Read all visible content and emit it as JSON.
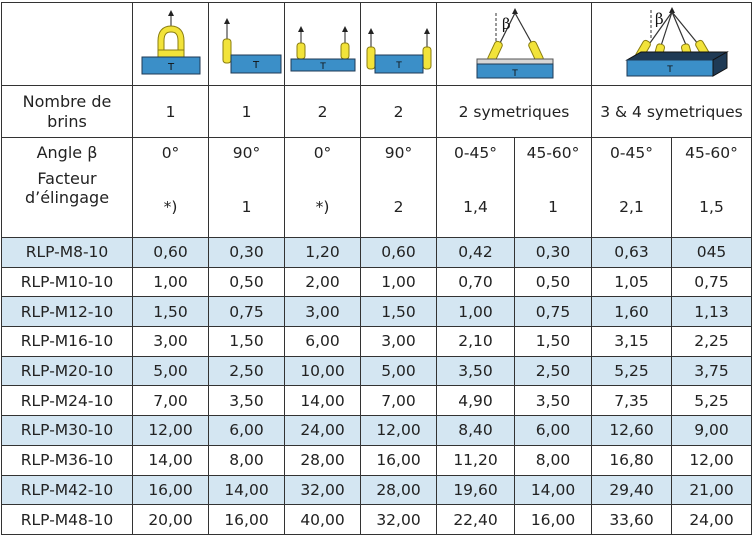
{
  "headers": {
    "brins_label": "Nombre de brins",
    "angle_label": "Angle β",
    "factor_label": "Facteur d’élingage",
    "brins": [
      "1",
      "1",
      "2",
      "2",
      "2 symetriques",
      "3 & 4 symetriques"
    ],
    "angles": [
      "0°",
      "90°",
      "0°",
      "90°",
      "0-45°",
      "45-60°",
      "0-45°",
      "45-60°"
    ],
    "factors": [
      "*)",
      "1",
      "*)",
      "2",
      "1,4",
      "1",
      "2,1",
      "1,5"
    ]
  },
  "icons": {
    "load_letter": "T",
    "beta_symbol": "β",
    "colors": {
      "load_blue": "#3b8fc8",
      "sling_yellow": "#f2e33a",
      "sling_outline": "#8a7d10",
      "shade_row": "#d4e6f2",
      "dark_base": "#1f3a55"
    },
    "names": [
      "single-vertical-lift-icon",
      "single-90-lift-icon",
      "double-vertical-lift-icon",
      "double-90-lift-icon",
      "two-leg-sling-icon",
      "four-leg-sling-icon"
    ]
  },
  "rows": [
    {
      "model": "RLP-M8-10",
      "values": [
        "0,60",
        "0,30",
        "1,20",
        "0,60",
        "0,42",
        "0,30",
        "0,63",
        "045"
      ]
    },
    {
      "model": "RLP-M10-10",
      "values": [
        "1,00",
        "0,50",
        "2,00",
        "1,00",
        "0,70",
        "0,50",
        "1,05",
        "0,75"
      ]
    },
    {
      "model": "RLP-M12-10",
      "values": [
        "1,50",
        "0,75",
        "3,00",
        "1,50",
        "1,00",
        "0,75",
        "1,60",
        "1,13"
      ]
    },
    {
      "model": "RLP-M16-10",
      "values": [
        "3,00",
        "1,50",
        "6,00",
        "3,00",
        "2,10",
        "1,50",
        "3,15",
        "2,25"
      ]
    },
    {
      "model": "RLP-M20-10",
      "values": [
        "5,00",
        "2,50",
        "10,00",
        "5,00",
        "3,50",
        "2,50",
        "5,25",
        "3,75"
      ]
    },
    {
      "model": "RLP-M24-10",
      "values": [
        "7,00",
        "3,50",
        "14,00",
        "7,00",
        "4,90",
        "3,50",
        "7,35",
        "5,25"
      ]
    },
    {
      "model": "RLP-M30-10",
      "values": [
        "12,00",
        "6,00",
        "24,00",
        "12,00",
        "8,40",
        "6,00",
        "12,60",
        "9,00"
      ]
    },
    {
      "model": "RLP-M36-10",
      "values": [
        "14,00",
        "8,00",
        "28,00",
        "16,00",
        "11,20",
        "8,00",
        "16,80",
        "12,00"
      ]
    },
    {
      "model": "RLP-M42-10",
      "values": [
        "16,00",
        "14,00",
        "32,00",
        "28,00",
        "19,60",
        "14,00",
        "29,40",
        "21,00"
      ]
    },
    {
      "model": "RLP-M48-10",
      "values": [
        "20,00",
        "16,00",
        "40,00",
        "32,00",
        "22,40",
        "16,00",
        "33,60",
        "24,00"
      ]
    }
  ]
}
